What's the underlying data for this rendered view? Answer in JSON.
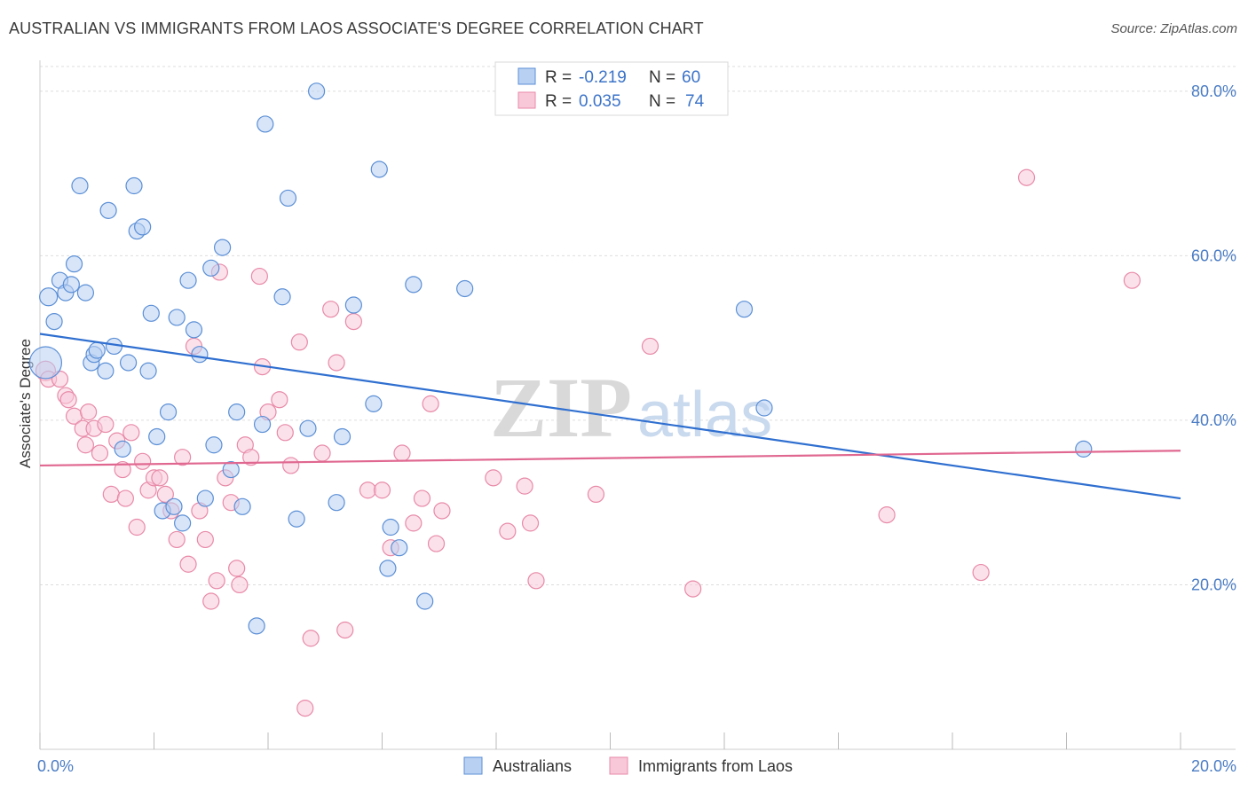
{
  "header": {
    "title": "AUSTRALIAN VS IMMIGRANTS FROM LAOS ASSOCIATE'S DEGREE CORRELATION CHART",
    "source": "Source: ZipAtlas.com"
  },
  "watermark": {
    "zip": "ZIP",
    "atlas": "atlas"
  },
  "colors": {
    "blue_fill": "#b8d0f2",
    "blue_stroke": "#5b8fd6",
    "blue_line": "#2f6fd0",
    "pink_fill": "#f8c8d8",
    "pink_stroke": "#e88aa8",
    "pink_line": "#e06890",
    "grid": "#dddddd",
    "axis_label": "#4a7cc4"
  },
  "legend": {
    "rows": [
      {
        "r_label": "R =",
        "r_value": "-0.219",
        "n_label": "N =",
        "n_value": "60"
      },
      {
        "r_label": "R =",
        "r_value": "0.035",
        "n_label": "N =",
        "n_value": "74"
      }
    ]
  },
  "chart_data": {
    "type": "scatter",
    "title": "AUSTRALIAN VS IMMIGRANTS FROM LAOS ASSOCIATE'S DEGREE CORRELATION CHART",
    "ylabel": "Associate's Degree",
    "xlabel": "",
    "xlim": [
      0,
      20
    ],
    "ylim": [
      0,
      83
    ],
    "x_tick_labels": [
      "0.0%",
      "20.0%"
    ],
    "y_ticks": [
      20,
      40,
      60,
      80
    ],
    "y_tick_labels": [
      "20.0%",
      "40.0%",
      "60.0%",
      "80.0%"
    ],
    "grid": true,
    "legend_position": "top-center",
    "series": [
      {
        "name": "Australians",
        "r": -0.219,
        "n": 60,
        "trend": {
          "x": [
            0,
            20
          ],
          "y": [
            50.5,
            30.5
          ]
        },
        "points": [
          [
            0.1,
            47,
            18
          ],
          [
            0.15,
            55,
            10
          ],
          [
            0.25,
            52,
            9
          ],
          [
            0.35,
            57,
            9
          ],
          [
            0.45,
            55.5,
            9
          ],
          [
            0.55,
            56.5,
            9
          ],
          [
            0.6,
            59,
            9
          ],
          [
            0.7,
            68.5,
            9
          ],
          [
            0.8,
            55.5,
            9
          ],
          [
            0.9,
            47,
            9
          ],
          [
            0.95,
            48,
            9
          ],
          [
            1.0,
            48.5,
            9
          ],
          [
            1.15,
            46,
            9
          ],
          [
            1.2,
            65.5,
            9
          ],
          [
            1.3,
            49,
            9
          ],
          [
            1.45,
            36.5,
            9
          ],
          [
            1.55,
            47,
            9
          ],
          [
            1.65,
            68.5,
            9
          ],
          [
            1.7,
            63,
            9
          ],
          [
            1.8,
            63.5,
            9
          ],
          [
            1.9,
            46,
            9
          ],
          [
            1.95,
            53,
            9
          ],
          [
            2.05,
            38,
            9
          ],
          [
            2.15,
            29,
            9
          ],
          [
            2.25,
            41,
            9
          ],
          [
            2.35,
            29.5,
            9
          ],
          [
            2.4,
            52.5,
            9
          ],
          [
            2.5,
            27.5,
            9
          ],
          [
            2.6,
            57,
            9
          ],
          [
            2.7,
            51,
            9
          ],
          [
            2.8,
            48,
            9
          ],
          [
            2.9,
            30.5,
            9
          ],
          [
            3.0,
            58.5,
            9
          ],
          [
            3.05,
            37,
            9
          ],
          [
            3.2,
            61,
            9
          ],
          [
            3.35,
            34,
            9
          ],
          [
            3.45,
            41,
            9
          ],
          [
            3.55,
            29.5,
            9
          ],
          [
            3.8,
            15,
            9
          ],
          [
            3.9,
            39.5,
            9
          ],
          [
            3.95,
            76,
            9
          ],
          [
            4.25,
            55,
            9
          ],
          [
            4.35,
            67,
            9
          ],
          [
            4.5,
            28,
            9
          ],
          [
            4.7,
            39,
            9
          ],
          [
            4.85,
            80,
            9
          ],
          [
            5.2,
            30,
            9
          ],
          [
            5.3,
            38,
            9
          ],
          [
            5.5,
            54,
            9
          ],
          [
            5.85,
            42,
            9
          ],
          [
            5.95,
            70.5,
            9
          ],
          [
            6.1,
            22,
            9
          ],
          [
            6.15,
            27,
            9
          ],
          [
            6.3,
            24.5,
            9
          ],
          [
            6.55,
            56.5,
            9
          ],
          [
            6.75,
            18,
            9
          ],
          [
            7.45,
            56,
            9
          ],
          [
            12.35,
            53.5,
            9
          ],
          [
            12.7,
            41.5,
            9
          ],
          [
            18.3,
            36.5,
            9
          ]
        ]
      },
      {
        "name": "Immigrants from Laos",
        "r": 0.035,
        "n": 74,
        "trend": {
          "x": [
            0,
            20
          ],
          "y": [
            34.5,
            36.3
          ]
        },
        "points": [
          [
            0.1,
            46,
            11
          ],
          [
            0.15,
            45,
            9
          ],
          [
            0.35,
            45,
            9
          ],
          [
            0.45,
            43,
            9
          ],
          [
            0.5,
            42.5,
            9
          ],
          [
            0.6,
            40.5,
            9
          ],
          [
            0.75,
            39,
            9
          ],
          [
            0.8,
            37,
            9
          ],
          [
            0.85,
            41,
            9
          ],
          [
            0.95,
            39,
            9
          ],
          [
            1.05,
            36,
            9
          ],
          [
            1.15,
            39.5,
            9
          ],
          [
            1.25,
            31,
            9
          ],
          [
            1.35,
            37.5,
            9
          ],
          [
            1.45,
            34,
            9
          ],
          [
            1.5,
            30.5,
            9
          ],
          [
            1.6,
            38.5,
            9
          ],
          [
            1.7,
            27,
            9
          ],
          [
            1.8,
            35,
            9
          ],
          [
            1.9,
            31.5,
            9
          ],
          [
            2.0,
            33,
            9
          ],
          [
            2.1,
            33,
            9
          ],
          [
            2.2,
            31,
            9
          ],
          [
            2.3,
            29,
            9
          ],
          [
            2.4,
            25.5,
            9
          ],
          [
            2.5,
            35.5,
            9
          ],
          [
            2.6,
            22.5,
            9
          ],
          [
            2.7,
            49,
            9
          ],
          [
            2.8,
            29,
            9
          ],
          [
            2.9,
            25.5,
            9
          ],
          [
            3.0,
            18,
            9
          ],
          [
            3.1,
            20.5,
            9
          ],
          [
            3.15,
            58,
            9
          ],
          [
            3.25,
            33,
            9
          ],
          [
            3.35,
            30,
            9
          ],
          [
            3.45,
            22,
            9
          ],
          [
            3.5,
            20,
            9
          ],
          [
            3.6,
            37,
            9
          ],
          [
            3.7,
            35.5,
            9
          ],
          [
            3.85,
            57.5,
            9
          ],
          [
            3.9,
            46.5,
            9
          ],
          [
            4.0,
            41,
            9
          ],
          [
            4.2,
            42.5,
            9
          ],
          [
            4.3,
            38.5,
            9
          ],
          [
            4.4,
            34.5,
            9
          ],
          [
            4.55,
            49.5,
            9
          ],
          [
            4.65,
            5,
            9
          ],
          [
            4.75,
            13.5,
            9
          ],
          [
            4.95,
            36,
            9
          ],
          [
            5.1,
            53.5,
            9
          ],
          [
            5.2,
            47,
            9
          ],
          [
            5.35,
            14.5,
            9
          ],
          [
            5.5,
            52,
            9
          ],
          [
            5.75,
            31.5,
            9
          ],
          [
            6.0,
            31.5,
            9
          ],
          [
            6.15,
            24.5,
            9
          ],
          [
            6.35,
            36,
            9
          ],
          [
            6.55,
            27.5,
            9
          ],
          [
            6.7,
            30.5,
            9
          ],
          [
            6.85,
            42,
            9
          ],
          [
            6.95,
            25,
            9
          ],
          [
            7.05,
            29,
            9
          ],
          [
            7.95,
            33,
            9
          ],
          [
            8.2,
            26.5,
            9
          ],
          [
            8.5,
            32,
            9
          ],
          [
            8.6,
            27.5,
            9
          ],
          [
            8.7,
            20.5,
            9
          ],
          [
            9.75,
            31,
            9
          ],
          [
            10.7,
            49,
            9
          ],
          [
            11.45,
            19.5,
            9
          ],
          [
            14.85,
            28.5,
            9
          ],
          [
            16.5,
            21.5,
            9
          ],
          [
            17.3,
            69.5,
            9
          ],
          [
            19.15,
            57,
            9
          ]
        ]
      }
    ]
  }
}
